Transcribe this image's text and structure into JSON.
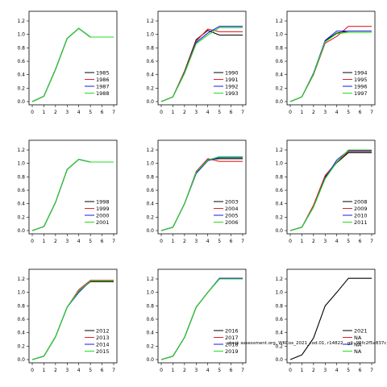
{
  "palette": [
    "#000000",
    "#e0202a",
    "#1a1ae0",
    "#22dd22"
  ],
  "footnote": "stock assessment.org, WKCox_2021_cod.01, r14822 . git: 95fc2f5a837c",
  "chart_data": [
    {
      "type": "line",
      "xlim": [
        0,
        7
      ],
      "ylim": [
        0,
        1.2
      ],
      "xticks": [
        0,
        1,
        2,
        3,
        4,
        5,
        6,
        7
      ],
      "yticks": [
        "0.0",
        "0.2",
        "0.4",
        "0.6",
        "0.8",
        "1.0",
        "1.2"
      ],
      "legend": "bottom-right",
      "series": [
        {
          "name": "1985",
          "x": [
            0,
            1,
            2,
            3,
            4,
            5,
            6,
            7
          ],
          "values": [
            0.0,
            0.08,
            0.48,
            0.94,
            1.09,
            0.96,
            0.96,
            0.96
          ]
        },
        {
          "name": "1986",
          "x": [
            0,
            1,
            2,
            3,
            4,
            5,
            6,
            7
          ],
          "values": [
            0.0,
            0.08,
            0.48,
            0.94,
            1.09,
            0.96,
            0.96,
            0.96
          ]
        },
        {
          "name": "1987",
          "x": [
            0,
            1,
            2,
            3,
            4,
            5,
            6,
            7
          ],
          "values": [
            0.0,
            0.08,
            0.48,
            0.94,
            1.09,
            0.96,
            0.96,
            0.96
          ]
        },
        {
          "name": "1988",
          "x": [
            0,
            1,
            2,
            3,
            4,
            5,
            6,
            7
          ],
          "values": [
            0.0,
            0.08,
            0.48,
            0.94,
            1.09,
            0.96,
            0.96,
            0.96
          ]
        }
      ]
    },
    {
      "type": "line",
      "xlim": [
        0,
        7
      ],
      "ylim": [
        0,
        1.2
      ],
      "xticks": [
        0,
        1,
        2,
        3,
        4,
        5,
        6,
        7
      ],
      "yticks": [
        "0.0",
        "0.2",
        "0.4",
        "0.6",
        "0.8",
        "1.0",
        "1.2"
      ],
      "legend": "bottom-right",
      "series": [
        {
          "name": "1990",
          "x": [
            0,
            1,
            2,
            3,
            4,
            5,
            6,
            7
          ],
          "values": [
            0.0,
            0.07,
            0.45,
            0.92,
            1.06,
            0.99,
            0.99,
            0.99
          ]
        },
        {
          "name": "1991",
          "x": [
            0,
            1,
            2,
            3,
            4,
            5,
            6,
            7
          ],
          "values": [
            0.0,
            0.07,
            0.44,
            0.9,
            1.08,
            1.04,
            1.04,
            1.04
          ]
        },
        {
          "name": "1992",
          "x": [
            0,
            1,
            2,
            3,
            4,
            5,
            6,
            7
          ],
          "values": [
            0.0,
            0.07,
            0.42,
            0.88,
            1.02,
            1.12,
            1.12,
            1.12
          ]
        },
        {
          "name": "1993",
          "x": [
            0,
            1,
            2,
            3,
            4,
            5,
            6,
            7
          ],
          "values": [
            0.0,
            0.07,
            0.42,
            0.86,
            0.99,
            1.1,
            1.1,
            1.1
          ]
        }
      ]
    },
    {
      "type": "line",
      "xlim": [
        0,
        7
      ],
      "ylim": [
        0,
        1.2
      ],
      "xticks": [
        0,
        1,
        2,
        3,
        4,
        5,
        6,
        7
      ],
      "yticks": [
        "0.0",
        "0.2",
        "0.4",
        "0.6",
        "0.8",
        "1.0",
        "1.2"
      ],
      "legend": "bottom-right",
      "series": [
        {
          "name": "1994",
          "x": [
            0,
            1,
            2,
            3,
            4,
            5,
            6,
            7
          ],
          "values": [
            0.0,
            0.07,
            0.42,
            0.9,
            1.02,
            1.05,
            1.05,
            1.05
          ]
        },
        {
          "name": "1995",
          "x": [
            0,
            1,
            2,
            3,
            4,
            5,
            6,
            7
          ],
          "values": [
            0.0,
            0.07,
            0.4,
            0.87,
            0.97,
            1.12,
            1.12,
            1.12
          ]
        },
        {
          "name": "1996",
          "x": [
            0,
            1,
            2,
            3,
            4,
            5,
            6,
            7
          ],
          "values": [
            0.0,
            0.07,
            0.42,
            0.91,
            1.05,
            1.05,
            1.05,
            1.05
          ]
        },
        {
          "name": "1997",
          "x": [
            0,
            1,
            2,
            3,
            4,
            5,
            6,
            7
          ],
          "values": [
            0.0,
            0.07,
            0.41,
            0.89,
            1.01,
            1.03,
            1.03,
            1.03
          ]
        }
      ]
    },
    {
      "type": "line",
      "xlim": [
        0,
        7
      ],
      "ylim": [
        0,
        1.2
      ],
      "xticks": [
        0,
        1,
        2,
        3,
        4,
        5,
        6,
        7
      ],
      "yticks": [
        "0.0",
        "0.2",
        "0.4",
        "0.6",
        "0.8",
        "1.0",
        "1.2"
      ],
      "legend": "bottom-right",
      "series": [
        {
          "name": "1998",
          "x": [
            0,
            1,
            2,
            3,
            4,
            5,
            6,
            7
          ],
          "values": [
            0.0,
            0.06,
            0.42,
            0.91,
            1.06,
            1.02,
            1.02,
            1.02
          ]
        },
        {
          "name": "1999",
          "x": [
            0,
            1,
            2,
            3,
            4,
            5,
            6,
            7
          ],
          "values": [
            0.0,
            0.06,
            0.42,
            0.91,
            1.06,
            1.02,
            1.02,
            1.02
          ]
        },
        {
          "name": "2000",
          "x": [
            0,
            1,
            2,
            3,
            4,
            5,
            6,
            7
          ],
          "values": [
            0.0,
            0.06,
            0.42,
            0.91,
            1.06,
            1.02,
            1.02,
            1.02
          ]
        },
        {
          "name": "2001",
          "x": [
            0,
            1,
            2,
            3,
            4,
            5,
            6,
            7
          ],
          "values": [
            0.0,
            0.06,
            0.42,
            0.91,
            1.06,
            1.02,
            1.02,
            1.02
          ]
        }
      ]
    },
    {
      "type": "line",
      "xlim": [
        0,
        7
      ],
      "ylim": [
        0,
        1.2
      ],
      "xticks": [
        0,
        1,
        2,
        3,
        4,
        5,
        6,
        7
      ],
      "yticks": [
        "0.0",
        "0.2",
        "0.4",
        "0.6",
        "0.8",
        "1.0",
        "1.2"
      ],
      "legend": "bottom-right",
      "series": [
        {
          "name": "2003",
          "x": [
            0,
            1,
            2,
            3,
            4,
            5,
            6,
            7
          ],
          "values": [
            0.0,
            0.05,
            0.4,
            0.86,
            1.06,
            1.07,
            1.07,
            1.07
          ]
        },
        {
          "name": "2004",
          "x": [
            0,
            1,
            2,
            3,
            4,
            5,
            6,
            7
          ],
          "values": [
            0.0,
            0.05,
            0.4,
            0.88,
            1.07,
            1.03,
            1.03,
            1.03
          ]
        },
        {
          "name": "2005",
          "x": [
            0,
            1,
            2,
            3,
            4,
            5,
            6,
            7
          ],
          "values": [
            0.0,
            0.05,
            0.4,
            0.85,
            1.04,
            1.09,
            1.09,
            1.09
          ]
        },
        {
          "name": "2006",
          "x": [
            0,
            1,
            2,
            3,
            4,
            5,
            6,
            7
          ],
          "values": [
            0.0,
            0.05,
            0.4,
            0.87,
            1.05,
            1.1,
            1.1,
            1.1
          ]
        }
      ]
    },
    {
      "type": "line",
      "xlim": [
        0,
        7
      ],
      "ylim": [
        0,
        1.2
      ],
      "xticks": [
        0,
        1,
        2,
        3,
        4,
        5,
        6,
        7
      ],
      "yticks": [
        "0.0",
        "0.2",
        "0.4",
        "0.6",
        "0.8",
        "1.0",
        "1.2"
      ],
      "legend": "bottom-right",
      "series": [
        {
          "name": "2008",
          "x": [
            0,
            1,
            2,
            3,
            4,
            5,
            6,
            7
          ],
          "values": [
            0.0,
            0.05,
            0.36,
            0.8,
            1.01,
            1.16,
            1.16,
            1.16
          ]
        },
        {
          "name": "2009",
          "x": [
            0,
            1,
            2,
            3,
            4,
            5,
            6,
            7
          ],
          "values": [
            0.0,
            0.05,
            0.38,
            0.82,
            1.02,
            1.18,
            1.18,
            1.18
          ]
        },
        {
          "name": "2010",
          "x": [
            0,
            1,
            2,
            3,
            4,
            5,
            6,
            7
          ],
          "values": [
            0.0,
            0.05,
            0.35,
            0.78,
            1.05,
            1.19,
            1.19,
            1.19
          ]
        },
        {
          "name": "2011",
          "x": [
            0,
            1,
            2,
            3,
            4,
            5,
            6,
            7
          ],
          "values": [
            0.0,
            0.05,
            0.35,
            0.77,
            1.02,
            1.2,
            1.2,
            1.2
          ]
        }
      ]
    },
    {
      "type": "line",
      "xlim": [
        0,
        7
      ],
      "ylim": [
        0,
        1.2
      ],
      "xticks": [
        0,
        1,
        2,
        3,
        4,
        5,
        6,
        7
      ],
      "yticks": [
        "0.0",
        "0.2",
        "0.4",
        "0.6",
        "0.8",
        "1.0",
        "1.2"
      ],
      "legend": "bottom-right",
      "series": [
        {
          "name": "2012",
          "x": [
            0,
            1,
            2,
            3,
            4,
            5,
            6,
            7
          ],
          "values": [
            0.0,
            0.05,
            0.34,
            0.78,
            1.02,
            1.16,
            1.16,
            1.16
          ]
        },
        {
          "name": "2013",
          "x": [
            0,
            1,
            2,
            3,
            4,
            5,
            6,
            7
          ],
          "values": [
            0.0,
            0.05,
            0.34,
            0.78,
            1.04,
            1.18,
            1.18,
            1.18
          ]
        },
        {
          "name": "2014",
          "x": [
            0,
            1,
            2,
            3,
            4,
            5,
            6,
            7
          ],
          "values": [
            0.0,
            0.05,
            0.34,
            0.78,
            1.0,
            1.17,
            1.17,
            1.17
          ]
        },
        {
          "name": "2015",
          "x": [
            0,
            1,
            2,
            3,
            4,
            5,
            6,
            7
          ],
          "values": [
            0.0,
            0.05,
            0.34,
            0.78,
            1.02,
            1.17,
            1.17,
            1.17
          ]
        }
      ]
    },
    {
      "type": "line",
      "xlim": [
        0,
        7
      ],
      "ylim": [
        0,
        1.2
      ],
      "xticks": [
        0,
        1,
        2,
        3,
        4,
        5,
        6,
        7
      ],
      "yticks": [
        "0.0",
        "0.2",
        "0.4",
        "0.6",
        "0.8",
        "1.0",
        "1.2"
      ],
      "legend": "bottom-right",
      "series": [
        {
          "name": "2016",
          "x": [
            0,
            1,
            2,
            3,
            4,
            5,
            6,
            7
          ],
          "values": [
            0.0,
            0.05,
            0.33,
            0.78,
            1.0,
            1.2,
            1.2,
            1.2
          ]
        },
        {
          "name": "2017",
          "x": [
            0,
            1,
            2,
            3,
            4,
            5,
            6,
            7
          ],
          "values": [
            0.0,
            0.05,
            0.33,
            0.78,
            1.0,
            1.21,
            1.21,
            1.21
          ]
        },
        {
          "name": "2018",
          "x": [
            0,
            1,
            2,
            3,
            4,
            5,
            6,
            7
          ],
          "values": [
            0.0,
            0.05,
            0.33,
            0.78,
            1.0,
            1.21,
            1.21,
            1.21
          ]
        },
        {
          "name": "2019",
          "x": [
            0,
            1,
            2,
            3,
            4,
            5,
            6,
            7
          ],
          "values": [
            0.0,
            0.05,
            0.33,
            0.78,
            1.0,
            1.2,
            1.2,
            1.2
          ]
        }
      ]
    },
    {
      "type": "line",
      "xlim": [
        0,
        7
      ],
      "ylim": [
        0,
        1.2
      ],
      "xticks": [
        0,
        1,
        2,
        3,
        4,
        5,
        6,
        7
      ],
      "yticks": [
        "0.0",
        "0.2",
        "0.4",
        "0.6",
        "0.8",
        "1.0",
        "1.2"
      ],
      "legend": "bottom-right",
      "series": [
        {
          "name": "2021",
          "x": [
            0,
            1,
            2,
            3,
            4,
            5,
            6,
            7
          ],
          "values": [
            0.0,
            0.07,
            0.32,
            0.8,
            1.0,
            1.21,
            1.21,
            1.21
          ]
        },
        {
          "name": "NA",
          "x": [],
          "values": []
        },
        {
          "name": "NA",
          "x": [],
          "values": []
        },
        {
          "name": "NA",
          "x": [],
          "values": []
        }
      ]
    }
  ]
}
